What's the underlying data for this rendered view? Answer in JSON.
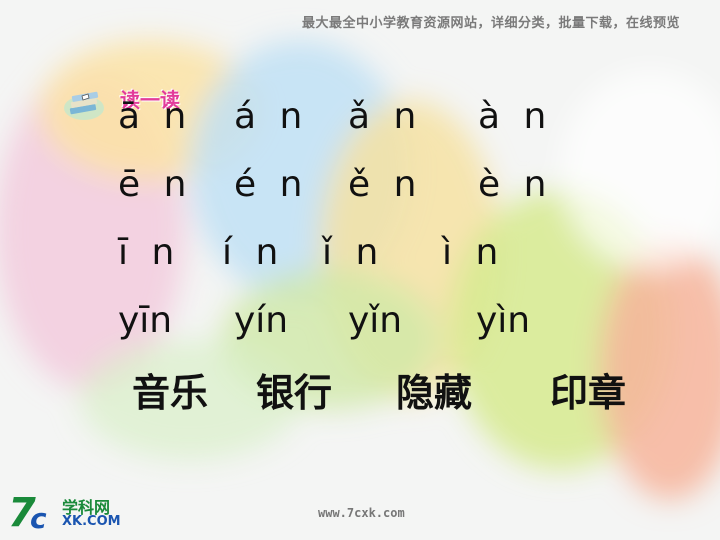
{
  "header": {
    "banner": "最大最全中小学教育资源网站，详细分类，批量下载，在线预览"
  },
  "section": {
    "title": "读一读",
    "icon": "book-stack-icon"
  },
  "pinyin_rows": [
    [
      "ā n",
      "á n",
      "ǎ n",
      "à n"
    ],
    [
      "ē n",
      "é n",
      "ě n",
      "è n"
    ],
    [
      "ī n",
      "í n",
      "ǐ n",
      "ì n"
    ],
    [
      "yīn",
      "yín",
      "yǐn",
      "yìn"
    ]
  ],
  "words": [
    "音乐",
    "银行",
    "隐藏",
    "印章"
  ],
  "footer": {
    "logo_icon": "7c-logo-icon",
    "logo_name": "学科网",
    "logo_domain": "XK.COM",
    "url": "www.7cxk.com"
  },
  "colors": {
    "title": "#e23c9a",
    "text": "#111111",
    "logo_green": "#1a8a3a",
    "logo_blue": "#1a55b0"
  }
}
